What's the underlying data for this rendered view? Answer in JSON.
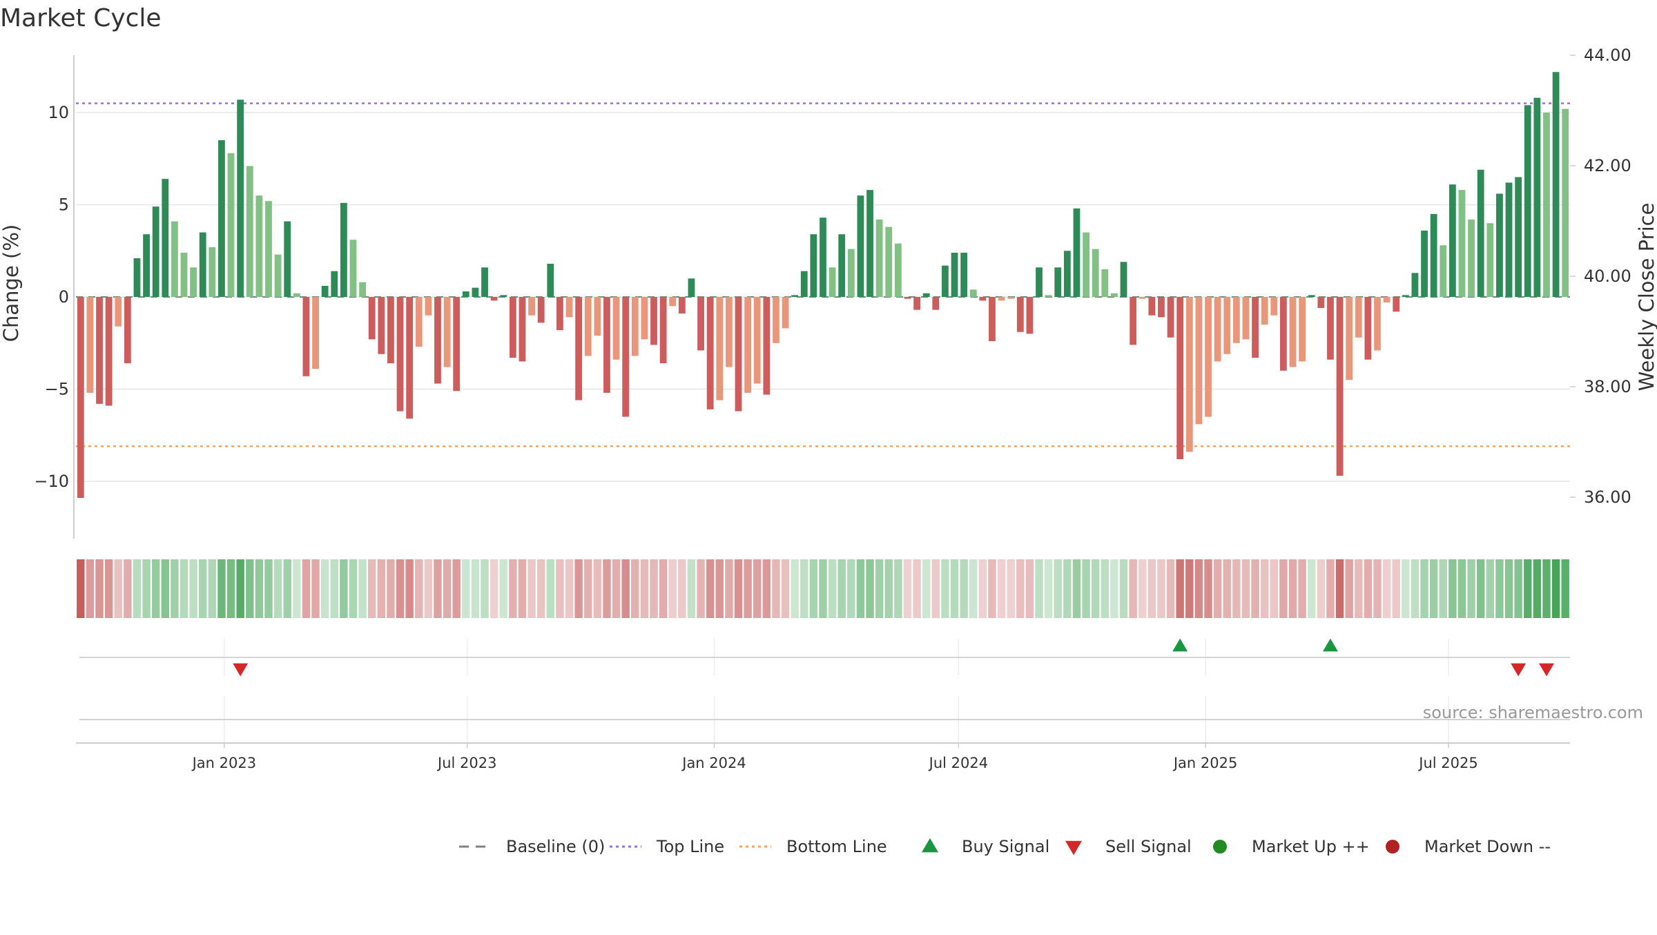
{
  "chart_data": {
    "type": "bar",
    "title": "Market Cycle",
    "ylabel_left": "Change (%)",
    "ylabel_right": "Weekly Close Price",
    "ylim_left": [
      -13,
      13
    ],
    "ylim_right": [
      34.2,
      44.0
    ],
    "left_ticks": [
      {
        "value": 10,
        "label": "10"
      },
      {
        "value": 5,
        "label": "5"
      },
      {
        "value": 0,
        "label": "0"
      },
      {
        "value": -5,
        "label": "−5"
      },
      {
        "value": -10,
        "label": "−10"
      }
    ],
    "right_ticks": [
      {
        "value": 44.0,
        "label": "44.00"
      },
      {
        "value": 42.0,
        "label": "42.00"
      },
      {
        "value": 40.0,
        "label": "40.00"
      },
      {
        "value": 38.0,
        "label": "38.00"
      },
      {
        "value": 36.0,
        "label": "36.00"
      }
    ],
    "x_start": "2022-09-16",
    "week_days": 7,
    "x_ticks": [
      {
        "date": "2023-01-01",
        "label": "Jan 2023"
      },
      {
        "date": "2023-07-01",
        "label": "Jul 2023"
      },
      {
        "date": "2024-01-01",
        "label": "Jan 2024"
      },
      {
        "date": "2024-07-01",
        "label": "Jul 2024"
      },
      {
        "date": "2025-01-01",
        "label": "Jan 2025"
      },
      {
        "date": "2025-07-01",
        "label": "Jul 2025"
      }
    ],
    "top_line": 10.5,
    "bottom_line": -8.1,
    "colors": {
      "up_strong": "#2e8b57",
      "up_light": "#82c085",
      "down_strong": "#cd5c5c",
      "down_light": "#e9967a",
      "top_line": "#9370db",
      "bottom_line": "#f4a460",
      "baseline": "#808080",
      "buy": "#1a9641",
      "sell": "#d62728",
      "market_up": "#228b22",
      "market_down": "#b22222"
    },
    "values": [
      -10.9,
      -5.2,
      -5.8,
      -5.9,
      -1.6,
      -3.6,
      2.1,
      3.4,
      4.9,
      6.4,
      4.1,
      2.4,
      1.6,
      3.5,
      2.7,
      8.5,
      7.8,
      10.7,
      7.1,
      5.5,
      5.2,
      2.3,
      4.1,
      0.2,
      -4.3,
      -3.9,
      0.6,
      1.4,
      5.1,
      3.1,
      0.8,
      -2.3,
      -3.1,
      -3.6,
      -6.2,
      -6.6,
      -2.7,
      -1.0,
      -4.7,
      -3.8,
      -5.1,
      0.3,
      0.5,
      1.6,
      -0.2,
      0.1,
      -3.3,
      -3.5,
      -1.0,
      -1.4,
      1.8,
      -1.8,
      -1.1,
      -5.6,
      -3.2,
      -2.1,
      -5.2,
      -3.4,
      -6.5,
      -3.2,
      -2.3,
      -2.6,
      -3.6,
      -0.5,
      -0.9,
      1.0,
      -2.9,
      -6.1,
      -5.6,
      -3.8,
      -6.2,
      -5.2,
      -4.7,
      -5.3,
      -2.5,
      -1.7,
      0.1,
      1.4,
      3.4,
      4.3,
      1.6,
      3.4,
      2.6,
      5.5,
      5.8,
      4.2,
      3.8,
      2.9,
      -0.1,
      -0.7,
      0.2,
      -0.7,
      1.7,
      2.4,
      2.4,
      0.4,
      -0.2,
      -2.4,
      -0.2,
      -0.1,
      -1.9,
      -2.0,
      1.6,
      0.1,
      1.6,
      2.5,
      4.8,
      3.5,
      2.6,
      1.5,
      0.2,
      1.9,
      -2.6,
      -0.1,
      -1.0,
      -1.1,
      -2.2,
      -8.8,
      -8.4,
      -6.9,
      -6.5,
      -3.5,
      -3.1,
      -2.5,
      -2.3,
      -3.3,
      -1.5,
      -1.0,
      -4.0,
      -3.8,
      -3.5,
      0.1,
      -0.6,
      -3.4,
      -9.7,
      -4.5,
      -2.2,
      -3.4,
      -2.9,
      -0.3,
      -0.8,
      0.1,
      1.3,
      3.6,
      4.5,
      2.8,
      6.1,
      5.8,
      4.2,
      6.9,
      4.0,
      5.6,
      6.2,
      6.5,
      10.4,
      10.8,
      10.0,
      12.2,
      10.2
    ],
    "markers": {
      "buy": [
        {
          "week": 117,
          "label": "Buy Signal"
        },
        {
          "week": 133,
          "label": "Buy Signal"
        }
      ],
      "sell": [
        {
          "week": 17,
          "label": "Sell Signal"
        },
        {
          "week": 153,
          "label": "Sell Signal"
        },
        {
          "week": 156,
          "label": "Sell Signal"
        }
      ]
    },
    "source": "source: sharemaestro.com",
    "legend": [
      {
        "key": "baseline",
        "label": "Baseline (0)",
        "kind": "dash-line"
      },
      {
        "key": "top_line",
        "label": "Top Line",
        "kind": "dot-line"
      },
      {
        "key": "bottom_line",
        "label": "Bottom Line",
        "kind": "dot-line"
      },
      {
        "key": "buy",
        "label": "Buy Signal",
        "kind": "triangle-up"
      },
      {
        "key": "sell",
        "label": "Sell Signal",
        "kind": "triangle-down"
      },
      {
        "key": "market_up",
        "label": "Market Up ++",
        "kind": "circle"
      },
      {
        "key": "market_down",
        "label": "Market Down --",
        "kind": "circle"
      }
    ]
  }
}
